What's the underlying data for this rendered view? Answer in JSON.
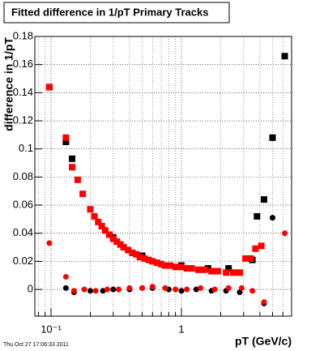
{
  "chart_data": {
    "type": "scatter",
    "title": "Fitted difference in 1/pT  Primary Tracks",
    "x_label": "pT (GeV/c)",
    "y_label": "difference in 1/pT",
    "footer": "Thu Oct 27 17:06:33 2011",
    "xlog": true,
    "grid": true,
    "xlim": [
      0.0751,
      7.0
    ],
    "ylim": [
      -0.019,
      0.18
    ],
    "xticks": [
      {
        "value": 0.1,
        "label": "10⁻¹"
      },
      1
    ],
    "yticks": [
      0,
      0.02,
      0.04,
      0.06,
      0.08,
      0.1,
      0.12,
      0.14,
      0.16,
      0.18
    ],
    "series": [
      {
        "color": "#000000",
        "marker": "square",
        "x": [
          0.097,
          0.13,
          0.145,
          0.3,
          0.5,
          1.0,
          1.6,
          2.3,
          3.5,
          3.8,
          4.3,
          5.0,
          6.2
        ],
        "values": [
          0.144,
          0.105,
          0.093,
          0.037,
          0.024,
          0.017,
          0.015,
          0.015,
          0.021,
          0.052,
          0.064,
          0.108,
          0.166
        ]
      },
      {
        "color": "#ff0000",
        "marker": "square",
        "x": [
          0.097,
          0.13,
          0.145,
          0.16,
          0.175,
          0.2,
          0.215,
          0.23,
          0.245,
          0.26,
          0.28,
          0.3,
          0.32,
          0.34,
          0.36,
          0.39,
          0.42,
          0.45,
          0.48,
          0.52,
          0.56,
          0.6,
          0.65,
          0.7,
          0.75,
          0.82,
          0.9,
          1.0,
          1.1,
          1.2,
          1.35,
          1.5,
          1.7,
          1.9,
          2.2,
          2.5,
          2.8,
          3.1,
          3.4,
          3.7,
          4.1
        ],
        "values": [
          0.144,
          0.108,
          0.087,
          0.078,
          0.068,
          0.057,
          0.052,
          0.048,
          0.045,
          0.042,
          0.039,
          0.036,
          0.034,
          0.032,
          0.03,
          0.028,
          0.026,
          0.025,
          0.023,
          0.022,
          0.021,
          0.02,
          0.019,
          0.018,
          0.017,
          0.017,
          0.016,
          0.016,
          0.015,
          0.015,
          0.014,
          0.014,
          0.013,
          0.013,
          0.012,
          0.012,
          0.012,
          0.022,
          0.022,
          0.029,
          0.031
        ]
      },
      {
        "color": "#000000",
        "marker": "circle",
        "x": [
          0.13,
          0.15,
          0.2,
          0.25,
          0.3,
          0.4,
          0.5,
          0.6,
          0.8,
          1.0,
          1.3,
          1.7,
          2.2,
          2.8,
          4.3,
          5.0
        ],
        "values": [
          0.001,
          -0.002,
          -0.001,
          -0.001,
          0,
          0,
          0.001,
          0.001,
          0,
          -0.001,
          0,
          -0.001,
          -0.001,
          -0.002,
          -0.01,
          0.051
        ]
      },
      {
        "color": "#ff0000",
        "marker": "circle",
        "x": [
          0.097,
          0.13,
          0.15,
          0.18,
          0.22,
          0.27,
          0.33,
          0.4,
          0.5,
          0.6,
          0.75,
          0.9,
          1.1,
          1.4,
          1.8,
          2.3,
          2.9,
          3.5,
          4.3,
          6.2
        ],
        "values": [
          0.033,
          0.009,
          -0.001,
          0,
          -0.001,
          0,
          0,
          0.001,
          0.001,
          0.002,
          0.001,
          0,
          0,
          0.001,
          0,
          0.001,
          0.001,
          -0.001,
          -0.009,
          0.04
        ]
      }
    ]
  }
}
